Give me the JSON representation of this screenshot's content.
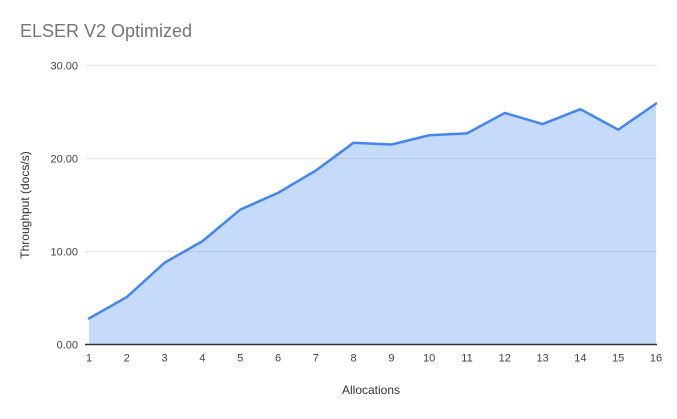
{
  "chart_data": {
    "type": "area",
    "title": "ELSER V2 Optimized",
    "xlabel": "Allocations",
    "ylabel": "Throughput (docs/s)",
    "categories": [
      "1",
      "2",
      "3",
      "4",
      "5",
      "6",
      "7",
      "8",
      "9",
      "10",
      "11",
      "12",
      "13",
      "14",
      "15",
      "16"
    ],
    "values": [
      2.8,
      5.1,
      8.8,
      11.1,
      14.5,
      16.3,
      18.7,
      21.7,
      21.5,
      22.5,
      22.7,
      24.9,
      23.7,
      25.3,
      23.1,
      25.9
    ],
    "ylim": [
      0,
      30
    ],
    "ytick_values": [
      0,
      10,
      20,
      30
    ],
    "ytick_labels": [
      "0.00",
      "10.00",
      "20.00",
      "30.00"
    ],
    "grid": true,
    "legend": "none",
    "colors": {
      "line": "#4285f4",
      "fill": "rgba(66,133,244,0.30)",
      "gridline": "#e6e6e6",
      "axis_line": "#333333",
      "tick_text": "#424242",
      "axis_title_text": "#333333",
      "title_text": "#757575",
      "background": "#ffffff"
    }
  }
}
